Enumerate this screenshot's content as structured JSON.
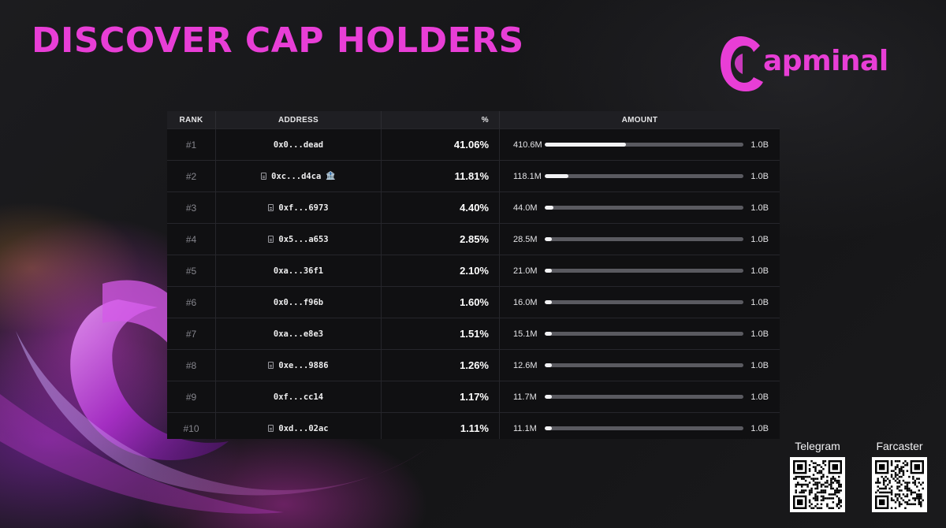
{
  "title": "DISCOVER CAP HOLDERS",
  "brand": {
    "name": "apminal",
    "color": "#e83ed6"
  },
  "table": {
    "headers": {
      "rank": "RANK",
      "address": "ADDRESS",
      "percent": "%",
      "amount": "AMOUNT"
    },
    "max_label": "1.0B",
    "rows": [
      {
        "rank": "#1",
        "address": "0x0...dead",
        "percent": "41.06%",
        "amount": "410.6M",
        "share": 0.4106,
        "contract_icon": false,
        "bank_icon": false
      },
      {
        "rank": "#2",
        "address": "0xc...d4ca",
        "percent": "11.81%",
        "amount": "118.1M",
        "share": 0.1181,
        "contract_icon": true,
        "bank_icon": true
      },
      {
        "rank": "#3",
        "address": "0xf...6973",
        "percent": "4.40%",
        "amount": "44.0M",
        "share": 0.044,
        "contract_icon": true,
        "bank_icon": false
      },
      {
        "rank": "#4",
        "address": "0x5...a653",
        "percent": "2.85%",
        "amount": "28.5M",
        "share": 0.0285,
        "contract_icon": true,
        "bank_icon": false
      },
      {
        "rank": "#5",
        "address": "0xa...36f1",
        "percent": "2.10%",
        "amount": "21.0M",
        "share": 0.021,
        "contract_icon": false,
        "bank_icon": false
      },
      {
        "rank": "#6",
        "address": "0x0...f96b",
        "percent": "1.60%",
        "amount": "16.0M",
        "share": 0.016,
        "contract_icon": false,
        "bank_icon": false
      },
      {
        "rank": "#7",
        "address": "0xa...e8e3",
        "percent": "1.51%",
        "amount": "15.1M",
        "share": 0.0151,
        "contract_icon": false,
        "bank_icon": false
      },
      {
        "rank": "#8",
        "address": "0xe...9886",
        "percent": "1.26%",
        "amount": "12.6M",
        "share": 0.0126,
        "contract_icon": true,
        "bank_icon": false
      },
      {
        "rank": "#9",
        "address": "0xf...cc14",
        "percent": "1.17%",
        "amount": "11.7M",
        "share": 0.0117,
        "contract_icon": false,
        "bank_icon": false
      },
      {
        "rank": "#10",
        "address": "0xd...02ac",
        "percent": "1.11%",
        "amount": "11.1M",
        "share": 0.0111,
        "contract_icon": true,
        "bank_icon": false
      }
    ]
  },
  "qr_codes": [
    {
      "label": "Telegram"
    },
    {
      "label": "Farcaster"
    }
  ]
}
